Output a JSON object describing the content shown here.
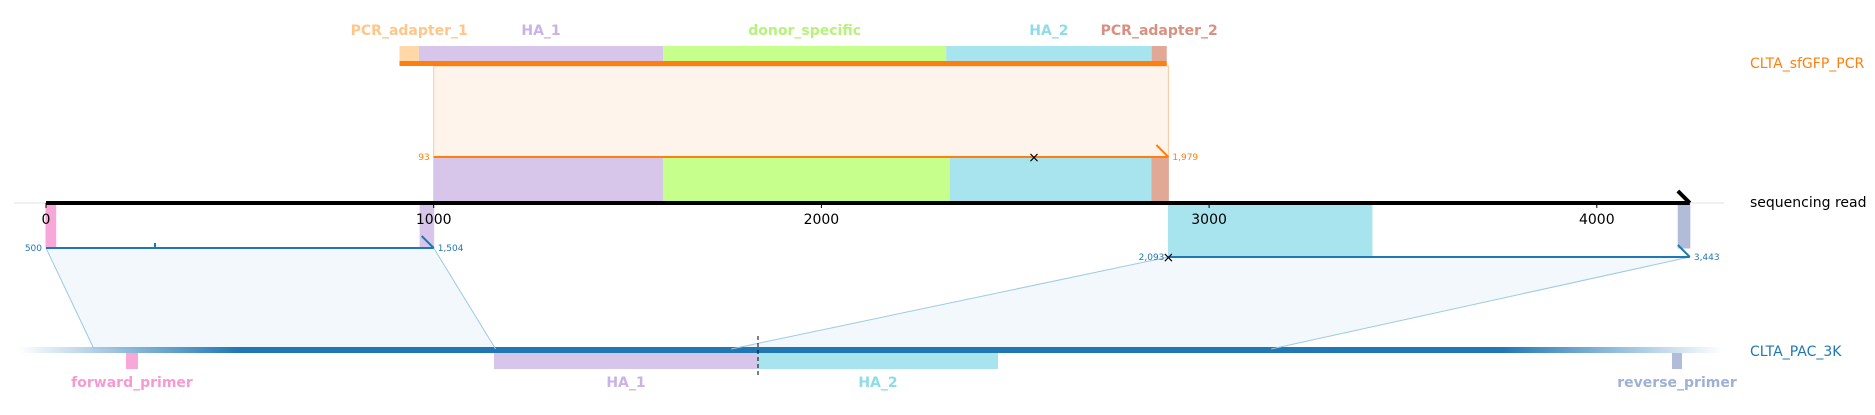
{
  "colors": {
    "orange": "#ff7f0e",
    "blue": "#1f77b4",
    "PCR_adapter_1": "#ffd8a8",
    "HA_1": "#d7c6ea",
    "donor_specific": "#c6ff8c",
    "HA_2": "#a8e4ee",
    "PCR_adapter_2": "#e2a896",
    "forward_primer": "#f7a8d8",
    "reverse_primer": "#b0bcd8",
    "labels": {
      "PCR_adapter_1": "#ffc68a",
      "HA_1": "#c9b3e6",
      "donor_specific": "#b7f27a",
      "HA_2": "#8ddce8",
      "PCR_adapter_2": "#d99080",
      "forward_primer": "#f79ad2",
      "reverse_primer": "#9fb0d6"
    }
  },
  "reference": {
    "name": "sequencing read",
    "length": 4240,
    "ticks": [
      {
        "value": 0,
        "label": "0"
      },
      {
        "value": 1000,
        "label": "1000"
      },
      {
        "value": 2000,
        "label": "2000"
      },
      {
        "value": 3000,
        "label": "3000"
      },
      {
        "value": 4000,
        "label": "4000"
      }
    ],
    "features": [
      {
        "name": "PCR_adapter_2",
        "start": 2850,
        "end": 2895
      },
      {
        "name": "HA_2",
        "start": 2330,
        "end": 2850
      },
      {
        "name": "donor_specific",
        "start": 1590,
        "end": 2330
      },
      {
        "name": "HA_1",
        "start": 1000,
        "end": 1590
      },
      {
        "name": "HA_2",
        "start": 2895,
        "end": 3420
      },
      {
        "name": "forward_primer",
        "start": 0,
        "end": 25
      },
      {
        "name": "HA_1",
        "start": 965,
        "end": 1000
      },
      {
        "name": "reverse_primer",
        "start": 4210,
        "end": 4240
      }
    ]
  },
  "top_target": {
    "name": "CLTA_sfGFP_PCR",
    "length": 1979,
    "alignment": {
      "ref_start": 1000,
      "ref_end": 2895,
      "q_start": "93",
      "q_end": "1,979"
    },
    "features": [
      {
        "name": "PCR_adapter_1",
        "label": "PCR_adapter_1",
        "start": 0,
        "end": 50
      },
      {
        "name": "HA_1",
        "label": "HA_1",
        "start": 50,
        "end": 680
      },
      {
        "name": "donor_specific",
        "label": "donor_specific",
        "start": 680,
        "end": 1410
      },
      {
        "name": "HA_2",
        "label": "HA_2",
        "start": 1410,
        "end": 1940
      },
      {
        "name": "PCR_adapter_2",
        "label": "PCR_adapter_2",
        "start": 1940,
        "end": 1979
      }
    ]
  },
  "bottom_target": {
    "name": "CLTA_PAC_3K",
    "cut_site": 2160,
    "features": [
      {
        "name": "forward_primer",
        "label": "forward_primer",
        "start": 580,
        "end": 610
      },
      {
        "name": "HA_1",
        "label": "HA_1",
        "start": 1500,
        "end": 2160
      },
      {
        "name": "HA_2",
        "label": "HA_2",
        "start": 2160,
        "end": 2760
      },
      {
        "name": "reverse_primer",
        "label": "reverse_primer",
        "start": 4445,
        "end": 4470
      }
    ],
    "alignments": [
      {
        "ref_start": 0,
        "ref_end": 1000,
        "q_start": 500,
        "q_end": 1504,
        "q_start_label": "500",
        "q_end_label": "1,504"
      },
      {
        "ref_start": 2895,
        "ref_end": 4240,
        "q_start": 2093,
        "q_end": 3443,
        "q_start_label": "2,093",
        "q_end_label": "3,443"
      }
    ]
  }
}
